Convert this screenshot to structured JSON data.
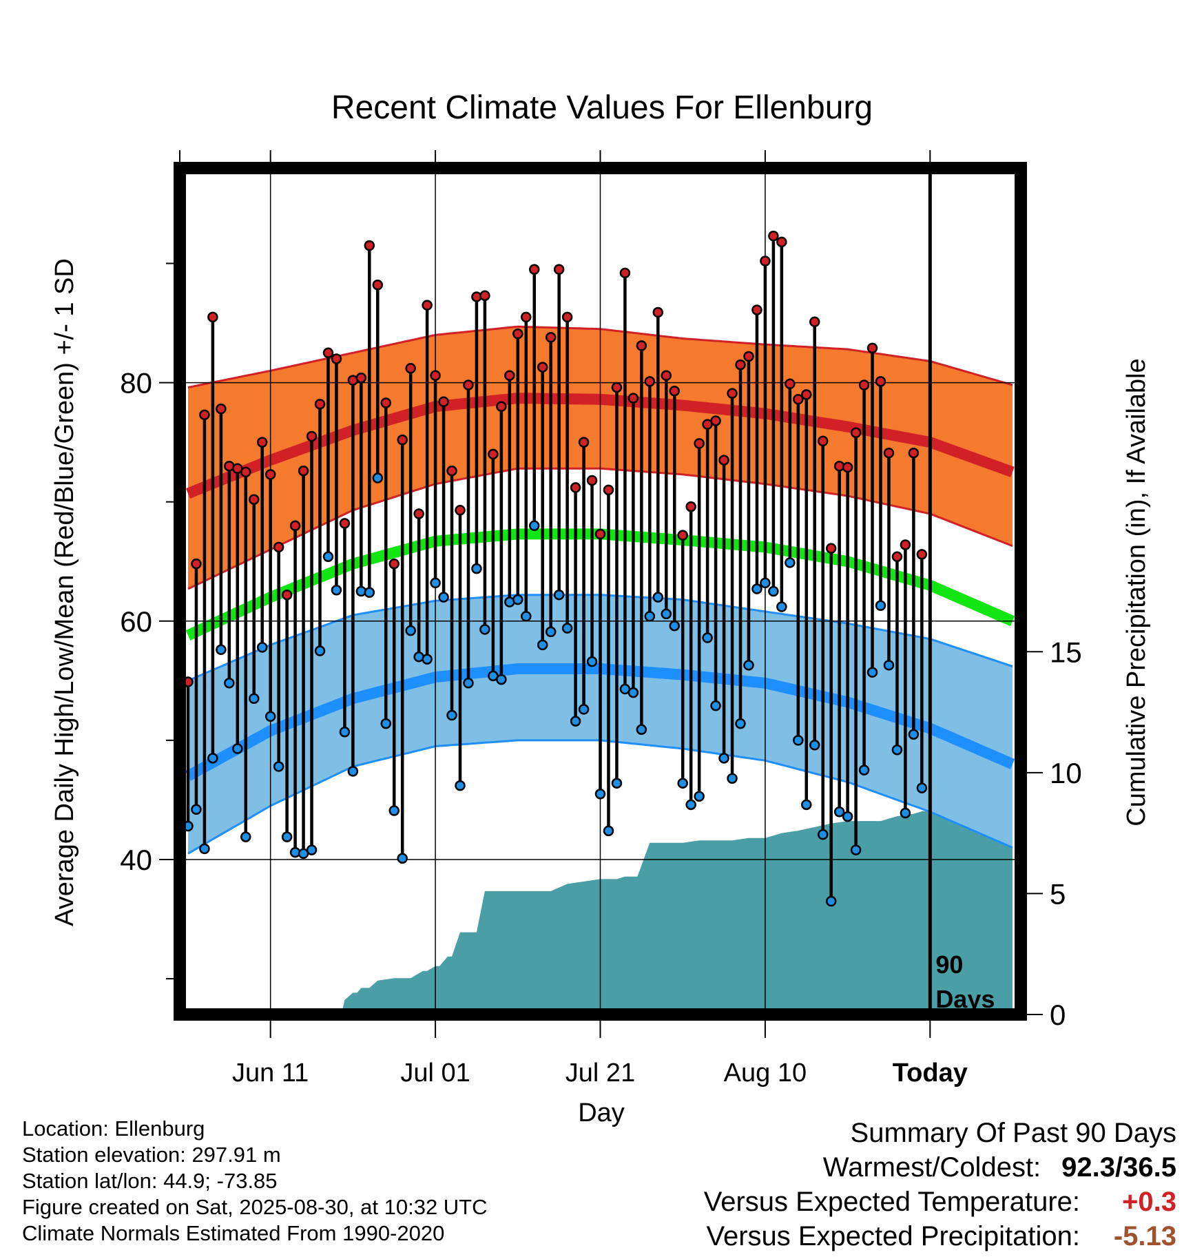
{
  "chart_data": {
    "type": "line",
    "title": "Recent Climate Values For Ellenburg",
    "xlabel": "Day",
    "ylabel": "Average Daily High/Low/Mean (Red/Blue/Green) +/- 1 SD",
    "ylabel_right": "Cumulative Precipitation (in), If Available",
    "ylim": [
      27,
      98
    ],
    "y_ticks": [
      40,
      60,
      80
    ],
    "y_minor_ticks": [
      30,
      50,
      70,
      90
    ],
    "y2_ticks": [
      0,
      5,
      10,
      15
    ],
    "precip_ylim": [
      0,
      35
    ],
    "x_range": [
      -1,
      101
    ],
    "x_ticks": [
      {
        "day": 10,
        "label": "Jun 11"
      },
      {
        "day": 30,
        "label": "Jul 01"
      },
      {
        "day": 50,
        "label": "Jul 21"
      },
      {
        "day": 70,
        "label": "Aug 10"
      },
      {
        "day": 90,
        "label": "Today"
      }
    ],
    "today_day": 90,
    "today_marker_label": [
      "90",
      "Days"
    ],
    "normals": {
      "day": [
        0,
        10,
        20,
        30,
        40,
        50,
        60,
        70,
        80,
        90,
        100
      ],
      "high_mean": [
        70.7,
        73.5,
        76.0,
        78.0,
        78.7,
        78.6,
        78.1,
        77.4,
        76.3,
        75.0,
        72.5
      ],
      "high_upper": [
        79.6,
        81.0,
        82.5,
        84.0,
        84.7,
        84.5,
        83.7,
        83.2,
        82.8,
        81.8,
        79.8
      ],
      "high_lower": [
        62.7,
        66.0,
        69.3,
        71.5,
        72.8,
        72.8,
        72.3,
        71.5,
        70.5,
        69.0,
        66.3
      ],
      "mean": [
        58.8,
        62.0,
        64.8,
        66.7,
        67.3,
        67.3,
        66.8,
        66.2,
        65.0,
        63.0,
        60.0
      ],
      "low_mean": [
        47.0,
        50.8,
        53.5,
        55.3,
        56.0,
        56.0,
        55.5,
        54.8,
        53.2,
        51.0,
        48.0
      ],
      "low_upper": [
        55.0,
        58.0,
        60.5,
        61.7,
        62.2,
        62.2,
        61.8,
        60.8,
        59.8,
        58.5,
        56.2
      ],
      "low_lower": [
        40.5,
        44.5,
        47.8,
        49.5,
        50.0,
        50.0,
        49.3,
        48.3,
        46.5,
        44.0,
        41.0
      ]
    },
    "observations": {
      "high": [
        54.9,
        64.8,
        77.3,
        85.5,
        77.8,
        73.0,
        72.8,
        72.5,
        70.2,
        75.0,
        72.3,
        66.2,
        62.2,
        68.0,
        72.6,
        75.5,
        78.2,
        82.5,
        82.0,
        68.2,
        80.2,
        80.4,
        91.5,
        88.2,
        78.3,
        64.8,
        75.2,
        81.2,
        69.0,
        86.5,
        80.6,
        78.4,
        72.6,
        69.3,
        79.8,
        87.2,
        87.3,
        74.0,
        78.0,
        80.6,
        84.1,
        85.5,
        89.5,
        81.3,
        83.8,
        89.5,
        85.5,
        71.2,
        75.0,
        71.8,
        67.3,
        71.0,
        79.6,
        89.2,
        78.7,
        83.1,
        80.1,
        85.9,
        80.6,
        79.3,
        67.2,
        69.6,
        74.9,
        76.5,
        76.8,
        73.5,
        79.1,
        81.5,
        82.2,
        86.1,
        90.2,
        92.3,
        91.8,
        79.9,
        78.6,
        79.0,
        85.1,
        75.1,
        66.1,
        73.0,
        72.9,
        75.8,
        79.8,
        82.9,
        80.1,
        74.1,
        65.4,
        66.4,
        74.1,
        65.6
      ],
      "low": [
        42.8,
        44.2,
        40.9,
        48.5,
        57.6,
        54.8,
        49.3,
        41.9,
        53.5,
        57.8,
        52.0,
        47.8,
        41.9,
        40.6,
        40.5,
        40.8,
        57.5,
        65.4,
        62.6,
        50.7,
        47.4,
        62.5,
        62.4,
        72.0,
        51.4,
        44.1,
        40.1,
        59.2,
        57.0,
        56.8,
        63.2,
        62.0,
        52.1,
        46.2,
        54.8,
        64.4,
        59.3,
        55.4,
        55.1,
        61.6,
        61.8,
        60.4,
        68.0,
        58.0,
        59.1,
        62.2,
        59.4,
        51.6,
        52.6,
        56.6,
        45.5,
        42.4,
        46.4,
        54.3,
        54.0,
        50.9,
        60.4,
        62.0,
        60.6,
        59.6,
        46.4,
        44.6,
        45.3,
        58.6,
        52.9,
        48.5,
        46.8,
        51.4,
        56.3,
        62.7,
        63.2,
        62.5,
        61.2,
        64.9,
        50.0,
        44.6,
        49.6,
        42.1,
        36.5,
        44.0,
        43.6,
        40.8,
        47.5,
        55.7,
        61.3,
        56.3,
        49.2,
        43.9,
        50.5,
        46.0
      ]
    },
    "cumulative_precipitation": {
      "day": [
        18.6,
        19.0,
        20.0,
        20.5,
        21.0,
        22.0,
        23.0,
        25.0,
        27.0,
        28.5,
        29.0,
        30.0,
        30.5,
        31.5,
        32.0,
        33.0,
        35.0,
        36.0,
        38.0,
        40.0,
        44.0,
        46.0,
        48.0,
        50.0,
        52.0,
        53.0,
        54.5,
        56.0,
        60.0,
        62.0,
        66.0,
        68.0,
        70.0,
        72.0,
        74.0,
        78.0,
        80.0,
        84.0,
        86.0,
        88.0,
        89.0,
        90.0,
        100.0
      ],
      "value": [
        0.0,
        0.6,
        0.9,
        0.9,
        1.1,
        1.1,
        1.4,
        1.5,
        1.5,
        1.8,
        1.8,
        2.0,
        2.0,
        2.4,
        2.4,
        3.4,
        3.4,
        5.1,
        5.1,
        5.1,
        5.1,
        5.4,
        5.5,
        5.6,
        5.6,
        5.7,
        5.7,
        7.1,
        7.1,
        7.2,
        7.2,
        7.3,
        7.3,
        7.5,
        7.6,
        7.9,
        8.0,
        8.0,
        8.2,
        8.3,
        8.4,
        8.4,
        8.4
      ]
    },
    "colors": {
      "high_band": "#f57a2e",
      "high_line": "#d12127",
      "mean_line": "#12e612",
      "low_band": "#7fbfe6",
      "low_line": "#1e8fff",
      "precip_fill": "#4a9ea6",
      "high_dot": "#d12127",
      "low_dot": "#1e8fe6"
    },
    "grid": true
  },
  "station_info": [
    "Location: Ellenburg",
    "Station elevation: 297.91 m",
    "Station lat/lon: 44.9; -73.85",
    "Figure created on Sat, 2025-08-30, at 10:32 UTC",
    "Climate Normals Estimated From 1990-2020"
  ],
  "summary": {
    "title": "Summary Of Past 90 Days",
    "warmest_coldest_label": "Warmest/Coldest:",
    "warmest_coldest_value": "92.3/36.5",
    "temp_label": "Versus Expected Temperature:",
    "temp_value": "+0.3",
    "temp_color": "#d12127",
    "precip_label": "Versus Expected Precipitation:",
    "precip_value": "-5.13",
    "precip_color": "#a0522d"
  }
}
